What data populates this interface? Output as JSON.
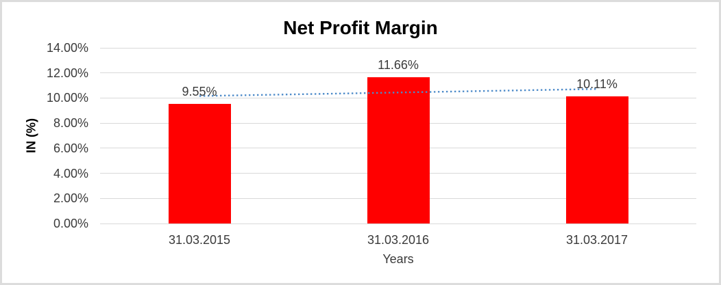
{
  "chart_data": {
    "type": "bar",
    "title": "Net Profit Margin",
    "xlabel": "Years",
    "ylabel": "IN (%)",
    "categories": [
      "31.03.2015",
      "31.03.2016",
      "31.03.2017"
    ],
    "values": [
      9.55,
      11.66,
      10.11
    ],
    "data_labels": [
      "9.55%",
      "11.66%",
      "10.11%"
    ],
    "ylim": [
      0,
      14
    ],
    "ytick_step": 2,
    "ytick_labels": [
      "0.00%",
      "2.00%",
      "4.00%",
      "6.00%",
      "8.00%",
      "10.00%",
      "12.00%",
      "14.00%"
    ],
    "grid": true,
    "legend": "none",
    "bar_color": "#ff0000",
    "gridline_color": "#d9d9d9",
    "trendline": {
      "type": "linear",
      "style": "dotted",
      "color": "#4e8bc9"
    }
  }
}
